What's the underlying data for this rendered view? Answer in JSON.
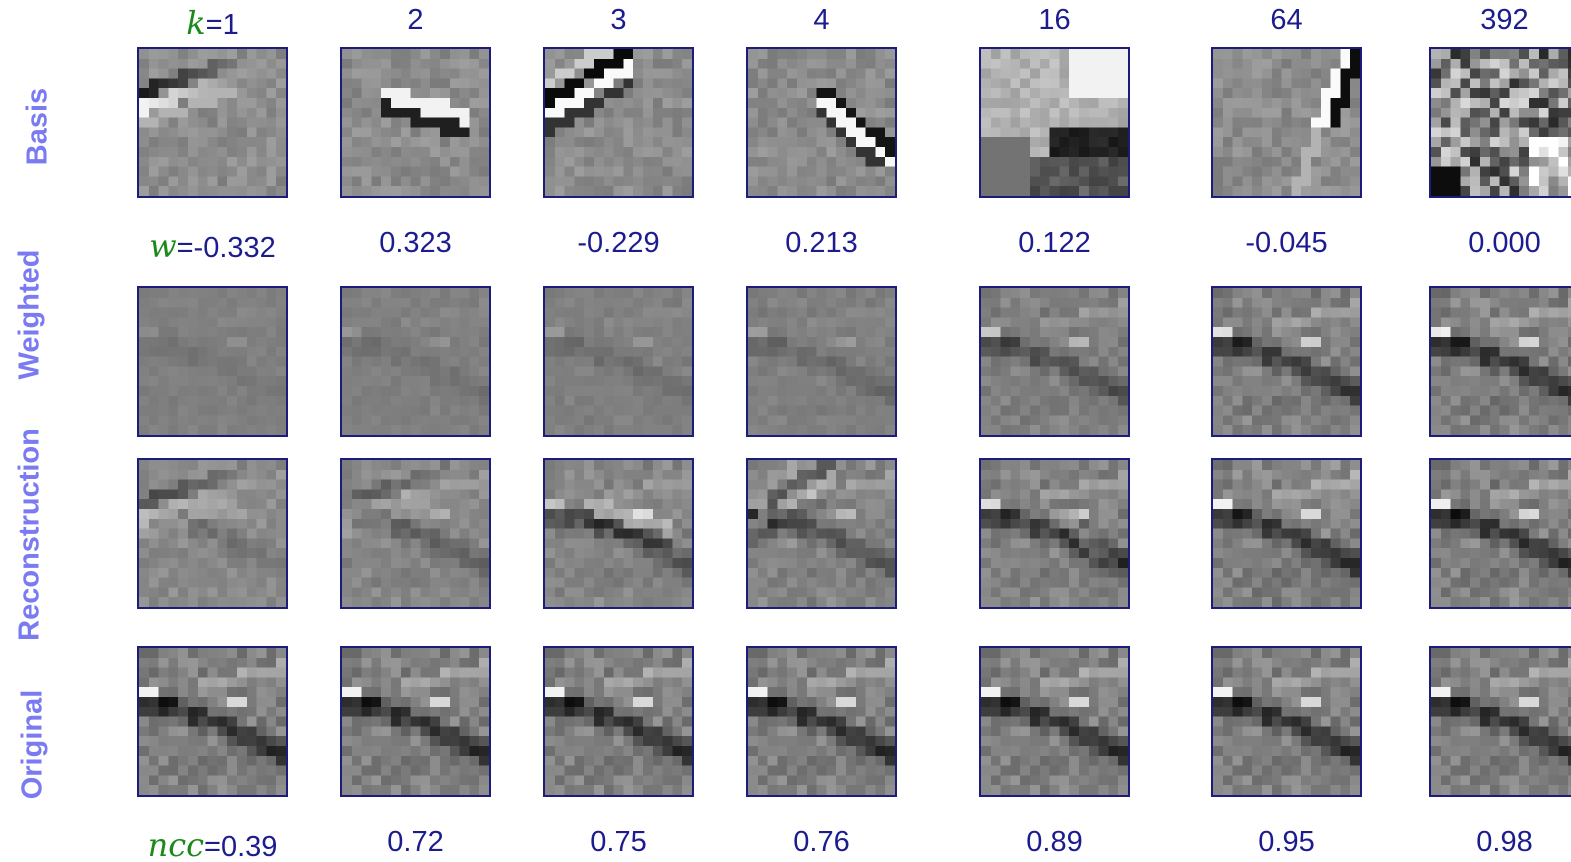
{
  "row_labels": {
    "basis": "Basis",
    "weighted": "Weighted",
    "reconstruction": "Reconstruction",
    "original": "Original"
  },
  "header": {
    "k_symbol": "k",
    "k_prefix": "=",
    "w_symbol": "w",
    "w_prefix": "=",
    "ncc_symbol": "ncc",
    "ncc_prefix": "="
  },
  "columns": [
    {
      "k": "1",
      "w": "-0.332",
      "ncc": "0.39"
    },
    {
      "k": "2",
      "w": "0.323",
      "ncc": "0.72"
    },
    {
      "k": "3",
      "w": "-0.229",
      "ncc": "0.75"
    },
    {
      "k": "4",
      "w": "0.213",
      "ncc": "0.76"
    },
    {
      "k": "16",
      "w": "0.122",
      "ncc": "0.89"
    },
    {
      "k": "64",
      "w": "-0.045",
      "ncc": "0.95"
    },
    {
      "k": "392",
      "w": "0.000",
      "ncc": "0.98"
    }
  ],
  "colors": {
    "row_label": "#7a7af2",
    "value_text": "#1c1c8f",
    "symbol": "#1a8a1a",
    "tile_border": "#1c1c7a"
  }
}
